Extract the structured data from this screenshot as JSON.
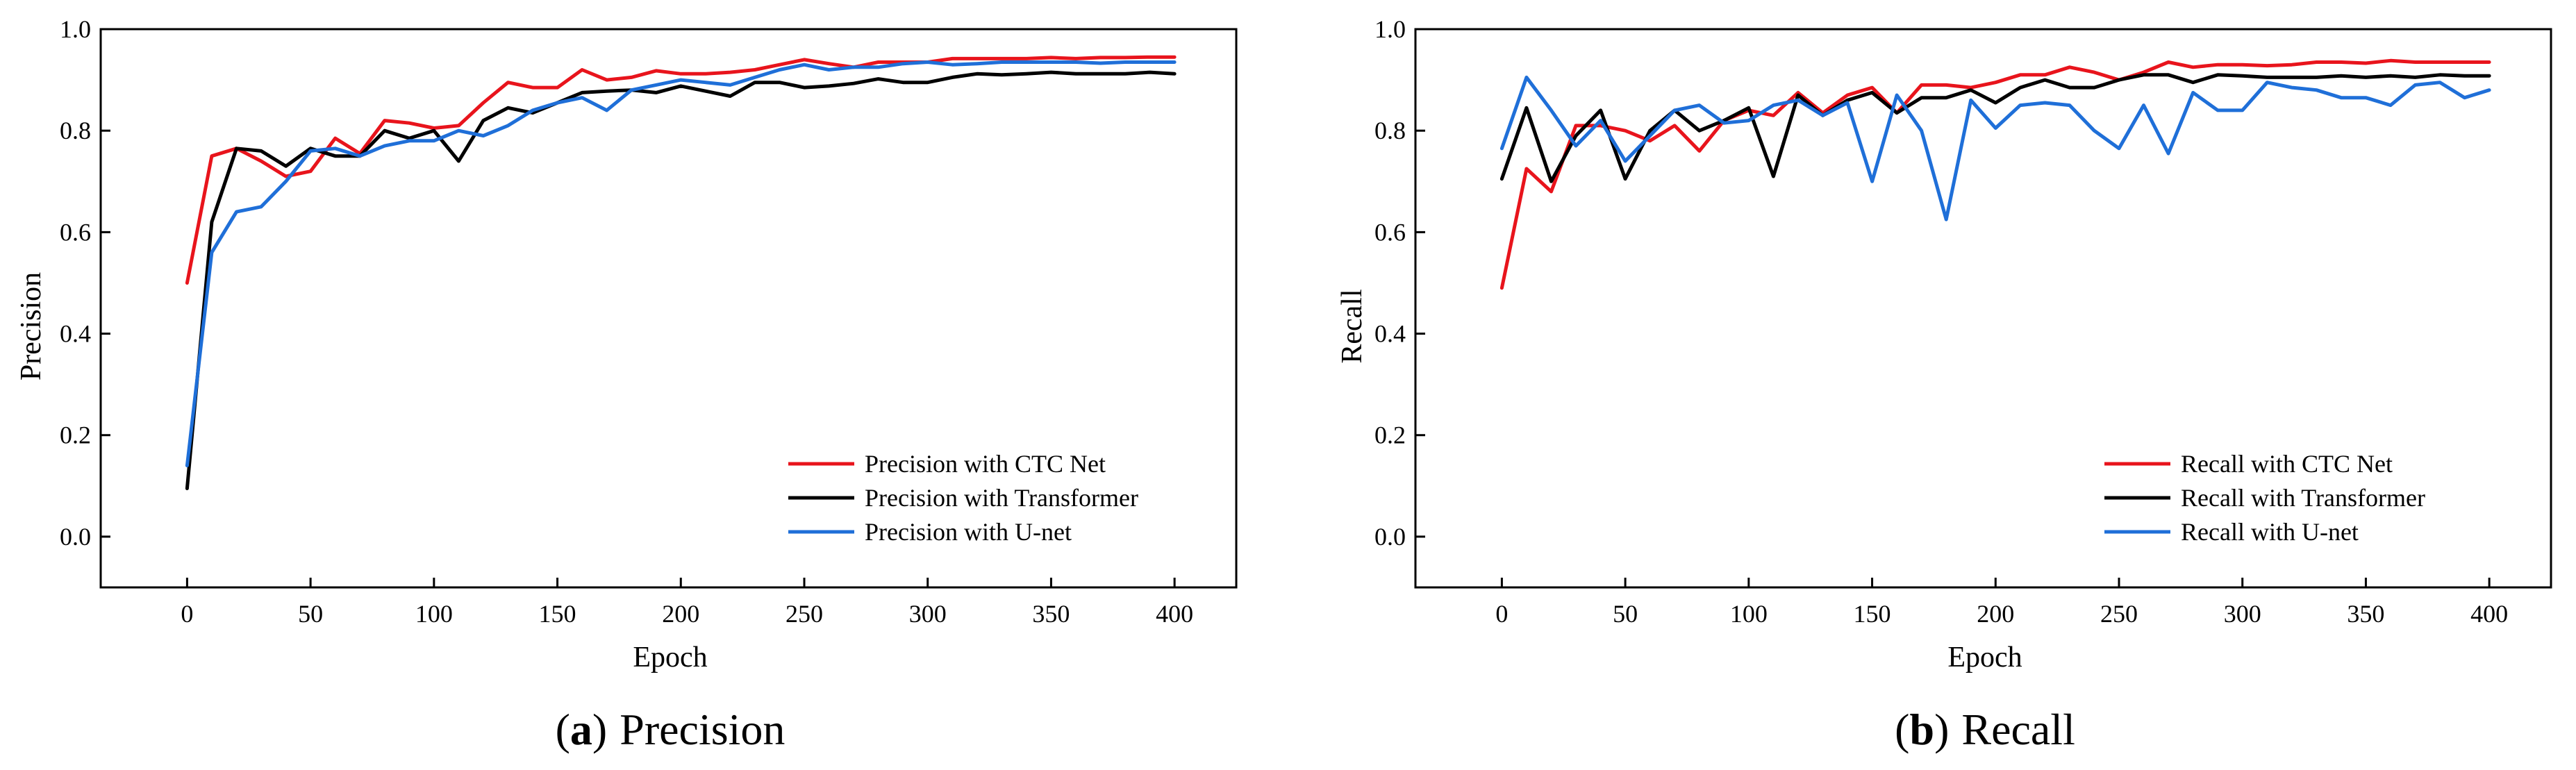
{
  "chart_data": [
    {
      "type": "line",
      "caption": {
        "open": "(",
        "letter": "a",
        "close": ")",
        "text": "Precision"
      },
      "xlabel": "Epoch",
      "ylabel": "Precision",
      "xlim": [
        -35,
        425
      ],
      "ylim": [
        -0.1,
        1.0
      ],
      "xticks": [
        0,
        50,
        100,
        150,
        200,
        250,
        300,
        350,
        400
      ],
      "yticks": [
        0.0,
        0.2,
        0.4,
        0.6,
        0.8,
        1.0
      ],
      "ytick_labels": [
        "0.0",
        "0.2",
        "0.4",
        "0.6",
        "0.8",
        "1.0"
      ],
      "grid": false,
      "legend_position": "bottom-right",
      "x": [
        0,
        10,
        20,
        30,
        40,
        50,
        60,
        70,
        80,
        90,
        100,
        110,
        120,
        130,
        140,
        150,
        160,
        170,
        180,
        190,
        200,
        210,
        220,
        230,
        240,
        250,
        260,
        270,
        280,
        290,
        300,
        310,
        320,
        330,
        340,
        350,
        360,
        370,
        380,
        390,
        400
      ],
      "series": [
        {
          "name": "Precision with CTC Net",
          "color": "#e8141c",
          "values": [
            0.5,
            0.75,
            0.765,
            0.74,
            0.71,
            0.72,
            0.785,
            0.755,
            0.82,
            0.815,
            0.805,
            0.81,
            0.855,
            0.895,
            0.885,
            0.885,
            0.92,
            0.9,
            0.905,
            0.918,
            0.912,
            0.912,
            0.915,
            0.92,
            0.93,
            0.94,
            0.932,
            0.925,
            0.935,
            0.935,
            0.935,
            0.942,
            0.942,
            0.942,
            0.942,
            0.944,
            0.942,
            0.944,
            0.944,
            0.945,
            0.945
          ]
        },
        {
          "name": "Precision with Transformer",
          "color": "#000000",
          "values": [
            0.095,
            0.62,
            0.765,
            0.76,
            0.73,
            0.765,
            0.75,
            0.75,
            0.8,
            0.785,
            0.8,
            0.74,
            0.82,
            0.845,
            0.835,
            0.855,
            0.875,
            0.878,
            0.88,
            0.875,
            0.888,
            0.878,
            0.868,
            0.895,
            0.895,
            0.885,
            0.888,
            0.893,
            0.902,
            0.895,
            0.895,
            0.905,
            0.912,
            0.91,
            0.912,
            0.915,
            0.912,
            0.912,
            0.912,
            0.915,
            0.912
          ]
        },
        {
          "name": "Precision with U-net",
          "color": "#1f6fd8",
          "values": [
            0.14,
            0.56,
            0.64,
            0.65,
            0.7,
            0.76,
            0.765,
            0.75,
            0.77,
            0.78,
            0.78,
            0.8,
            0.79,
            0.81,
            0.84,
            0.855,
            0.865,
            0.84,
            0.88,
            0.89,
            0.9,
            0.895,
            0.89,
            0.905,
            0.92,
            0.93,
            0.92,
            0.925,
            0.925,
            0.932,
            0.935,
            0.93,
            0.932,
            0.935,
            0.935,
            0.935,
            0.935,
            0.933,
            0.935,
            0.935,
            0.935
          ]
        }
      ]
    },
    {
      "type": "line",
      "caption": {
        "open": "(",
        "letter": "b",
        "close": ")",
        "text": "Recall"
      },
      "xlabel": "Epoch",
      "ylabel": "Recall",
      "xlim": [
        -35,
        425
      ],
      "ylim": [
        -0.1,
        1.0
      ],
      "xticks": [
        0,
        50,
        100,
        150,
        200,
        250,
        300,
        350,
        400
      ],
      "yticks": [
        0.0,
        0.2,
        0.4,
        0.6,
        0.8,
        1.0
      ],
      "ytick_labels": [
        "0.0",
        "0.2",
        "0.4",
        "0.6",
        "0.8",
        "1.0"
      ],
      "grid": false,
      "legend_position": "bottom-right",
      "x": [
        0,
        10,
        20,
        30,
        40,
        50,
        60,
        70,
        80,
        90,
        100,
        110,
        120,
        130,
        140,
        150,
        160,
        170,
        180,
        190,
        200,
        210,
        220,
        230,
        240,
        250,
        260,
        270,
        280,
        290,
        300,
        310,
        320,
        330,
        340,
        350,
        360,
        370,
        380,
        390,
        400
      ],
      "series": [
        {
          "name": "Recall with CTC Net",
          "color": "#e8141c",
          "values": [
            0.49,
            0.725,
            0.68,
            0.81,
            0.81,
            0.8,
            0.78,
            0.81,
            0.76,
            0.82,
            0.84,
            0.83,
            0.875,
            0.835,
            0.87,
            0.885,
            0.835,
            0.89,
            0.89,
            0.885,
            0.895,
            0.91,
            0.91,
            0.925,
            0.915,
            0.9,
            0.915,
            0.935,
            0.925,
            0.93,
            0.93,
            0.928,
            0.93,
            0.935,
            0.935,
            0.933,
            0.938,
            0.935,
            0.935,
            0.935,
            0.935
          ]
        },
        {
          "name": "Recall with Transformer",
          "color": "#000000",
          "values": [
            0.705,
            0.845,
            0.7,
            0.79,
            0.84,
            0.705,
            0.8,
            0.84,
            0.8,
            0.82,
            0.845,
            0.71,
            0.87,
            0.83,
            0.86,
            0.875,
            0.835,
            0.865,
            0.865,
            0.88,
            0.855,
            0.885,
            0.9,
            0.885,
            0.885,
            0.9,
            0.91,
            0.91,
            0.895,
            0.91,
            0.908,
            0.905,
            0.905,
            0.905,
            0.908,
            0.905,
            0.908,
            0.905,
            0.91,
            0.908,
            0.908
          ]
        },
        {
          "name": "Recall with U-net",
          "color": "#1f6fd8",
          "values": [
            0.765,
            0.905,
            0.84,
            0.77,
            0.82,
            0.74,
            0.79,
            0.84,
            0.85,
            0.815,
            0.82,
            0.85,
            0.86,
            0.83,
            0.855,
            0.7,
            0.87,
            0.8,
            0.625,
            0.86,
            0.805,
            0.85,
            0.855,
            0.85,
            0.8,
            0.765,
            0.85,
            0.755,
            0.875,
            0.84,
            0.84,
            0.895,
            0.885,
            0.88,
            0.865,
            0.865,
            0.85,
            0.89,
            0.895,
            0.865,
            0.88
          ]
        }
      ]
    }
  ]
}
